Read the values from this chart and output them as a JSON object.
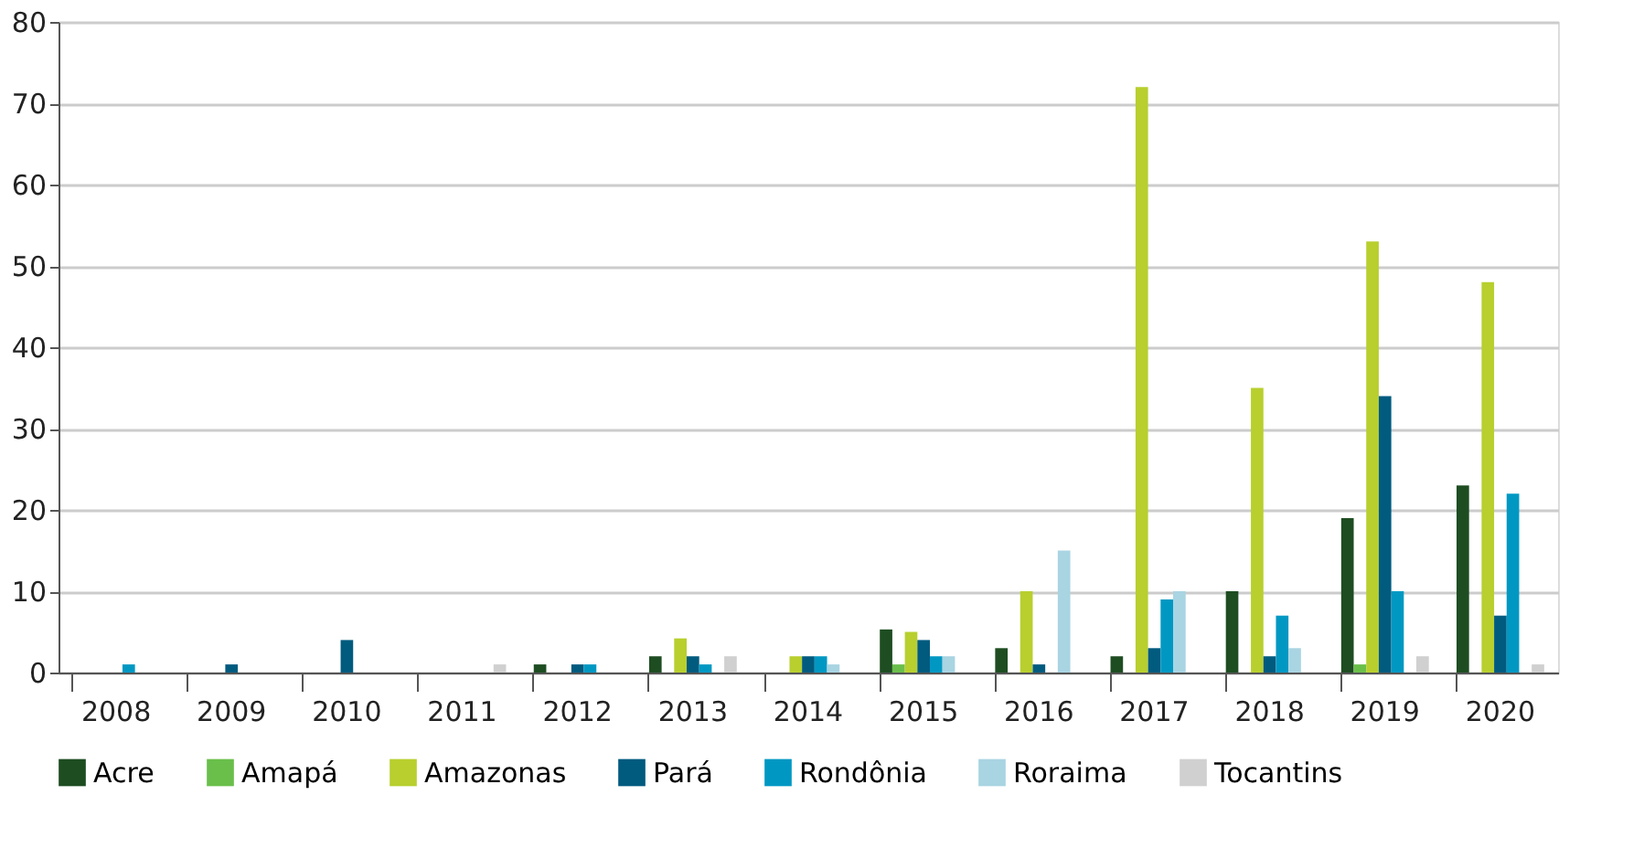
{
  "chart_data": {
    "type": "bar",
    "categories": [
      "2008",
      "2009",
      "2010",
      "2011",
      "2012",
      "2013",
      "2014",
      "2015",
      "2016",
      "2017",
      "2018",
      "2019",
      "2020"
    ],
    "series": [
      {
        "name": "Acre",
        "color": "#1e4d22",
        "values": [
          0,
          0,
          0,
          0,
          1,
          2,
          0,
          5.3,
          3,
          2,
          10,
          19,
          23
        ]
      },
      {
        "name": "Amapá",
        "color": "#6abf4b",
        "values": [
          0,
          0,
          0,
          0,
          0,
          0,
          0,
          1,
          0,
          0,
          0,
          1,
          0
        ]
      },
      {
        "name": "Amazonas",
        "color": "#b8cf2e",
        "values": [
          0,
          0,
          0,
          0,
          0,
          4.2,
          2,
          5,
          10,
          72,
          35,
          53,
          48
        ]
      },
      {
        "name": "Pará",
        "color": "#005b7f",
        "values": [
          0,
          1,
          4,
          0,
          1,
          2,
          2,
          4,
          1,
          3,
          2,
          34,
          7
        ]
      },
      {
        "name": "Rondônia",
        "color": "#0098c3",
        "values": [
          1,
          0,
          0,
          0,
          1,
          1,
          2,
          2,
          0,
          9,
          7,
          10,
          22
        ]
      },
      {
        "name": "Roraima",
        "color": "#a9d4e2",
        "values": [
          0,
          0,
          0,
          0,
          0,
          0,
          1,
          2,
          15,
          10,
          3,
          0,
          0
        ]
      },
      {
        "name": "Tocantins",
        "color": "#d0d0d0",
        "values": [
          0,
          0,
          0,
          1,
          0,
          2,
          0,
          0,
          0,
          0,
          0,
          2,
          1
        ]
      }
    ],
    "ylim": [
      0,
      80
    ],
    "yticks": [
      0,
      10,
      20,
      30,
      40,
      50,
      60,
      70,
      80
    ],
    "grid": "y",
    "legend": "bottom"
  }
}
